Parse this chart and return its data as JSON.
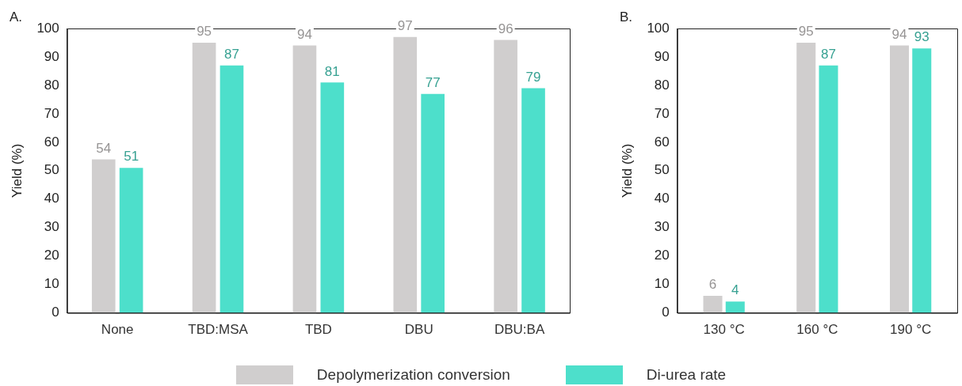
{
  "chart_data": [
    {
      "type": "bar",
      "annotations": [
        "A."
      ],
      "ylabel": "Yield (%)",
      "categories": [
        "None",
        "TBD:MSA",
        "TBD",
        "DBU",
        "DBU:BA"
      ],
      "ylim": [
        0,
        100
      ],
      "yticks": [
        0,
        10,
        20,
        30,
        40,
        50,
        60,
        70,
        80,
        90,
        100
      ],
      "grid": false,
      "legend": "bottom",
      "data_labels": true,
      "series": [
        {
          "name": "Depolymerization conversion",
          "color": "#d0cece",
          "values": [
            54,
            95,
            94,
            97,
            96
          ]
        },
        {
          "name": "Di-urea rate",
          "color": "#4ddfcb",
          "values": [
            51,
            87,
            81,
            77,
            79
          ]
        }
      ]
    },
    {
      "type": "bar",
      "annotations": [
        "B."
      ],
      "ylabel": "Yield (%)",
      "categories": [
        "130 °C",
        "160 °C",
        "190 °C"
      ],
      "ylim": [
        0,
        100
      ],
      "yticks": [
        0,
        10,
        20,
        30,
        40,
        50,
        60,
        70,
        80,
        90,
        100
      ],
      "grid": false,
      "data_labels": true,
      "series": [
        {
          "color": "#d0cece",
          "values": [
            6,
            95,
            94
          ]
        },
        {
          "color": "#4ddfcb",
          "values": [
            4,
            87,
            93
          ]
        }
      ]
    }
  ]
}
